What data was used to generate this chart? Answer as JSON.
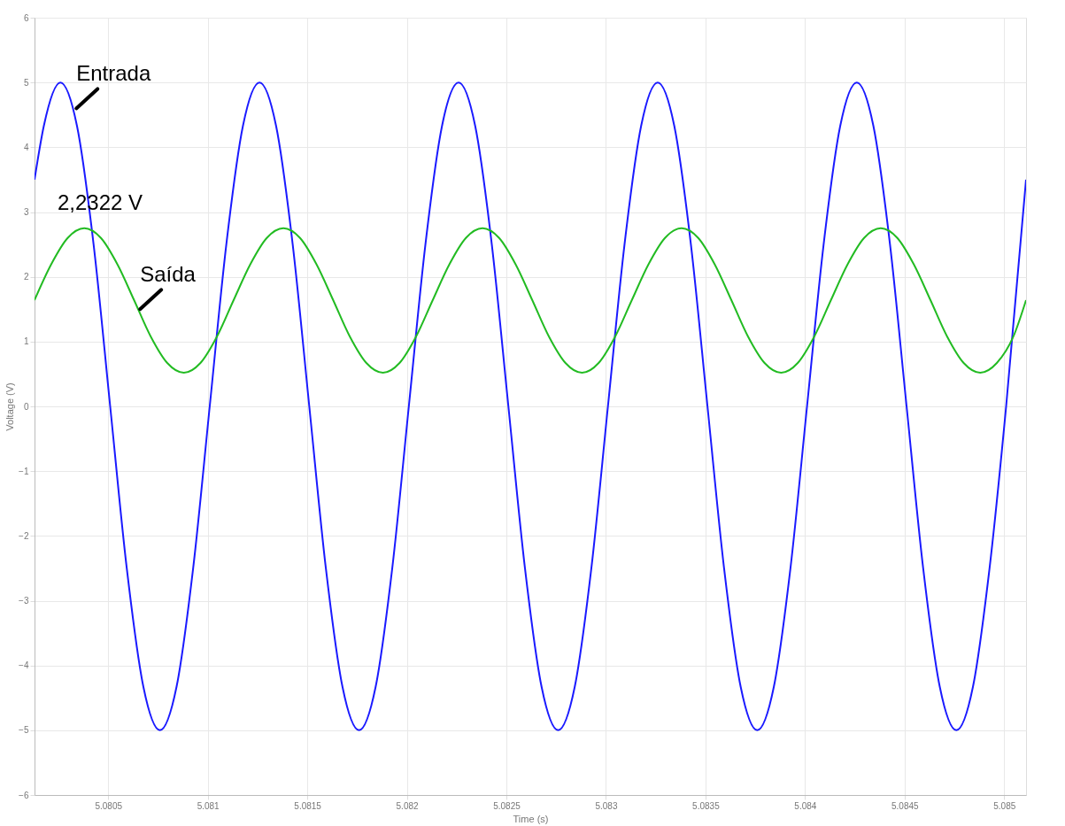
{
  "chart_data": {
    "type": "line",
    "xlabel": "Time (s)",
    "ylabel": "Voltage (V)",
    "xlim": [
      5.08013,
      5.08511
    ],
    "xticks": [
      5.0805,
      5.081,
      5.0815,
      5.082,
      5.0825,
      5.083,
      5.0835,
      5.084,
      5.0845,
      5.085
    ],
    "ylim": [
      -6,
      6
    ],
    "yticks": [
      -6,
      -5,
      -4,
      -3,
      -2,
      -1,
      0,
      1,
      2,
      3,
      4,
      5,
      6
    ],
    "grid": true,
    "marker": "none",
    "line_style": "solid",
    "annotations": [
      {
        "text": "Entrada",
        "x": 5.08034,
        "y": 4.6
      },
      {
        "text": "Saída",
        "x": 5.08066,
        "y": 1.5
      },
      "2,2322 V"
    ],
    "series": [
      {
        "color": "#1a1aff",
        "x": [
          5.08013,
          5.0801767,
          5.08026,
          5.0803433,
          5.0804267,
          5.08051,
          5.0805933,
          5.0806767,
          5.08076,
          5.0808433,
          5.0809267,
          5.08101,
          5.0810933,
          5.0811767,
          5.08126,
          5.0813433,
          5.0814267,
          5.08151,
          5.0815933,
          5.0816767,
          5.08176,
          5.0818433,
          5.0819267,
          5.08201,
          5.0820933,
          5.0821767,
          5.08226,
          5.0823433,
          5.0824267,
          5.08251,
          5.0825933,
          5.0826767,
          5.08276,
          5.0828433,
          5.0829267,
          5.08301,
          5.0830933,
          5.0831767,
          5.08326,
          5.0833433,
          5.0834267,
          5.08351,
          5.0835933,
          5.0836767,
          5.08376,
          5.0838433,
          5.0839267,
          5.08401,
          5.0840933,
          5.0841767,
          5.08426,
          5.0843433,
          5.0844267,
          5.08451,
          5.0845933,
          5.0846767,
          5.08476,
          5.0848433,
          5.0849267,
          5.08501,
          5.08511
        ],
        "values": [
          3.5,
          4.33,
          5,
          4.33,
          2.5,
          0,
          -2.5,
          -4.33,
          -5,
          -4.33,
          -2.5,
          0,
          2.5,
          4.33,
          5,
          4.33,
          2.5,
          0,
          -2.5,
          -4.33,
          -5,
          -4.33,
          -2.5,
          0,
          2.5,
          4.33,
          5,
          4.33,
          2.5,
          0,
          -2.5,
          -4.33,
          -5,
          -4.33,
          -2.5,
          0,
          2.5,
          4.33,
          5,
          4.33,
          2.5,
          0,
          -2.5,
          -4.33,
          -5,
          -4.33,
          -2.5,
          0,
          2.5,
          4.33,
          5,
          4.33,
          2.5,
          0,
          -2.5,
          -4.33,
          -5,
          -4.33,
          -2.5,
          0,
          3.5
        ]
      },
      {
        "color": "#22bb22",
        "x": [
          5.08013,
          5.0802133,
          5.0802967,
          5.08038,
          5.0804633,
          5.0805467,
          5.08063,
          5.0807133,
          5.0807967,
          5.08088,
          5.0809633,
          5.0810467,
          5.08113,
          5.0812133,
          5.0812967,
          5.08138,
          5.0814633,
          5.0815467,
          5.08163,
          5.0817133,
          5.0817967,
          5.08188,
          5.0819633,
          5.0820467,
          5.08213,
          5.0822133,
          5.0822967,
          5.08238,
          5.0824633,
          5.0825467,
          5.08263,
          5.0827133,
          5.0827967,
          5.08288,
          5.0829633,
          5.0830467,
          5.08313,
          5.0832133,
          5.0832967,
          5.08338,
          5.0834633,
          5.0835467,
          5.08363,
          5.0837133,
          5.0837967,
          5.08388,
          5.0839633,
          5.0840467,
          5.08413,
          5.0842133,
          5.0842967,
          5.08438,
          5.0844633,
          5.0845467,
          5.08463,
          5.0847133,
          5.0847967,
          5.08488,
          5.0849633,
          5.0850467,
          5.08511
        ],
        "values": [
          1.64,
          2.19,
          2.6,
          2.75,
          2.6,
          2.19,
          1.64,
          1.08,
          0.67,
          0.52,
          0.67,
          1.08,
          1.64,
          2.19,
          2.6,
          2.75,
          2.6,
          2.19,
          1.64,
          1.08,
          0.67,
          0.52,
          0.67,
          1.08,
          1.64,
          2.19,
          2.6,
          2.75,
          2.6,
          2.19,
          1.64,
          1.08,
          0.67,
          0.52,
          0.67,
          1.08,
          1.64,
          2.19,
          2.6,
          2.75,
          2.6,
          2.19,
          1.64,
          1.08,
          0.67,
          0.52,
          0.67,
          1.08,
          1.64,
          2.19,
          2.6,
          2.75,
          2.6,
          2.19,
          1.64,
          1.08,
          0.67,
          0.52,
          0.67,
          1.08,
          1.64
        ]
      }
    ]
  }
}
